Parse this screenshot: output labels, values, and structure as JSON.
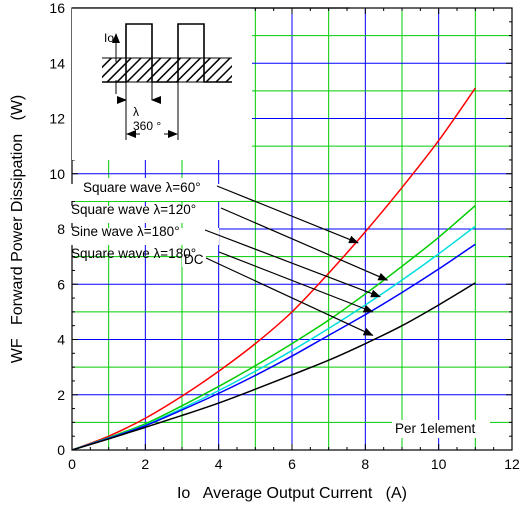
{
  "chart_data": {
    "type": "line",
    "xlabel": "Io   Average Output Current   (A)",
    "ylabel": "WF   Forward Power Dissipation   (W)",
    "xlim": [
      0,
      12
    ],
    "ylim": [
      0,
      16
    ],
    "xticks": [
      "0",
      "2",
      "4",
      "6",
      "8",
      "10",
      "12"
    ],
    "yticks": [
      "0",
      "2",
      "4",
      "6",
      "8",
      "10",
      "12",
      "14",
      "16"
    ],
    "grid": true,
    "grid_color": "#00cc00",
    "series": [
      {
        "name": "Square wave λ=60°",
        "color": "#ff0000",
        "x": [
          0,
          1,
          2,
          3,
          4,
          5,
          6,
          7,
          8,
          9,
          10,
          11
        ],
        "y": [
          0,
          0.5,
          1.15,
          1.95,
          2.85,
          3.85,
          5.0,
          6.4,
          7.9,
          9.5,
          11.2,
          13.1
        ]
      },
      {
        "name": "Square wave λ=120°",
        "color": "#00cc00",
        "x": [
          0,
          1,
          2,
          3,
          4,
          5,
          6,
          7,
          8,
          9,
          10,
          11
        ],
        "y": [
          0,
          0.45,
          0.95,
          1.6,
          2.3,
          3.05,
          3.85,
          4.7,
          5.65,
          6.65,
          7.7,
          8.85
        ]
      },
      {
        "name": "Sine wave λ=180°",
        "color": "#00dddd",
        "x": [
          0,
          1,
          2,
          3,
          4,
          5,
          6,
          7,
          8,
          9,
          10,
          11
        ],
        "y": [
          0,
          0.43,
          0.9,
          1.5,
          2.15,
          2.85,
          3.6,
          4.4,
          5.25,
          6.15,
          7.1,
          8.1
        ]
      },
      {
        "name": "Square wave λ=180°",
        "color": "#0000ff",
        "x": [
          0,
          1,
          2,
          3,
          4,
          5,
          6,
          7,
          8,
          9,
          10,
          11
        ],
        "y": [
          0,
          0.42,
          0.88,
          1.45,
          2.05,
          2.7,
          3.4,
          4.15,
          4.9,
          5.7,
          6.55,
          7.45
        ]
      },
      {
        "name": "DC",
        "color": "#000000",
        "x": [
          0,
          1,
          2,
          3,
          4,
          5,
          6,
          7,
          8,
          9,
          10,
          11
        ],
        "y": [
          0,
          0.4,
          0.82,
          1.25,
          1.7,
          2.2,
          2.72,
          3.25,
          3.85,
          4.5,
          5.25,
          6.05
        ]
      }
    ],
    "annotations": [
      {
        "text": "Square wave λ=60°",
        "target": [
          7.8,
          7.5
        ]
      },
      {
        "text": "Square wave λ=120°",
        "target": [
          8.6,
          6.15
        ]
      },
      {
        "text": "Sine wave λ=180°",
        "target": [
          8.4,
          5.55
        ]
      },
      {
        "text": "Square wave λ=180°",
        "target": [
          8.2,
          5.0
        ]
      },
      {
        "text": "DC",
        "target": [
          8.2,
          4.15
        ]
      }
    ],
    "note": "Per 1element",
    "inset": {
      "io_label": "Io",
      "lambda_label": "λ",
      "period_label": "360 °"
    }
  }
}
